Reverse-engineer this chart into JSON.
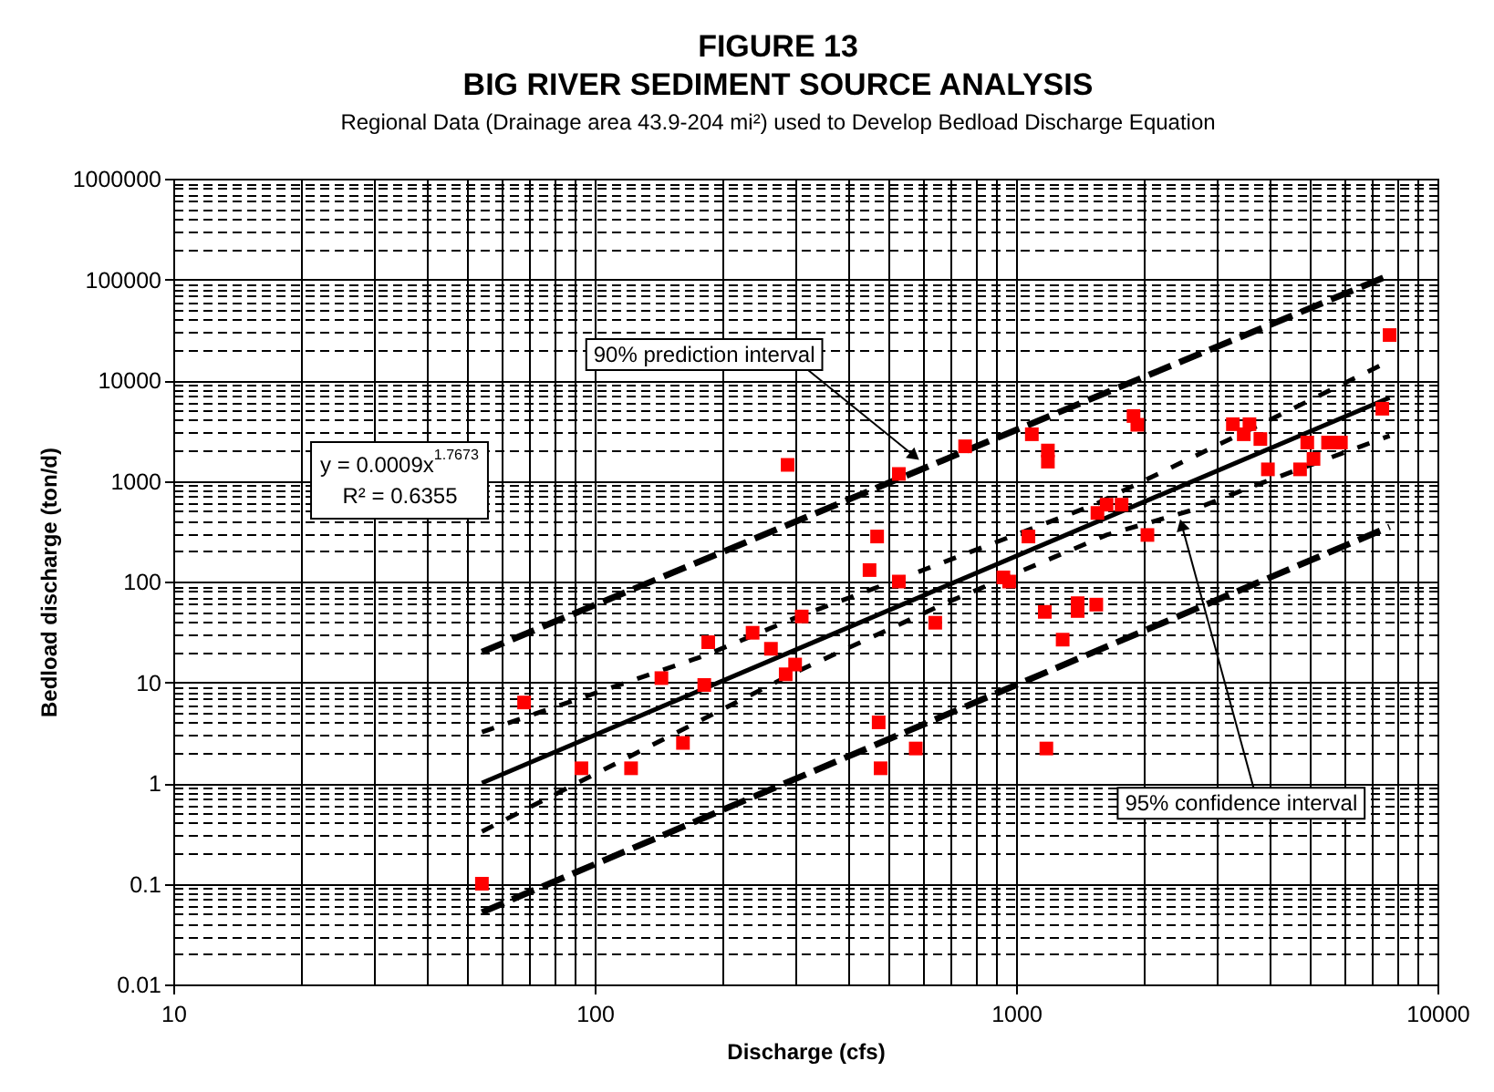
{
  "chart_data": {
    "type": "scatter",
    "title": "FIGURE 13\nBIG RIVER SEDIMENT SOURCE ANALYSIS",
    "subtitle": "Regional Data (Drainage area 43.9-204 mi²) used to Develop Bedload Discharge Equation",
    "xlabel": "Discharge (cfs)",
    "ylabel": "Bedload discharge (ton/d)",
    "log": "xy",
    "grid": true,
    "xlim": [
      10,
      10000
    ],
    "ylim": [
      0.01,
      1000000
    ],
    "xticks": [
      10,
      {
        "value": 20,
        "label": null
      },
      {
        "value": 30,
        "label": null
      },
      {
        "value": 40,
        "label": null
      },
      {
        "value": 50,
        "label": null
      },
      {
        "value": 60,
        "label": null
      },
      {
        "value": 70,
        "label": null
      },
      {
        "value": 80,
        "label": null
      },
      {
        "value": 90,
        "label": null
      },
      100,
      {
        "value": 200,
        "label": null
      },
      {
        "value": 300,
        "label": null
      },
      {
        "value": 400,
        "label": null
      },
      {
        "value": 500,
        "label": null
      },
      {
        "value": 600,
        "label": null
      },
      {
        "value": 700,
        "label": null
      },
      {
        "value": 800,
        "label": null
      },
      {
        "value": 900,
        "label": null
      },
      1000,
      {
        "value": 2000,
        "label": null
      },
      {
        "value": 3000,
        "label": null
      },
      {
        "value": 4000,
        "label": null
      },
      {
        "value": 5000,
        "label": null
      },
      {
        "value": 6000,
        "label": null
      },
      {
        "value": 7000,
        "label": null
      },
      {
        "value": 8000,
        "label": null
      },
      {
        "value": 9000,
        "label": null
      },
      10000
    ],
    "yticks": [
      0.01,
      {
        "value": 0.02,
        "label": null
      },
      {
        "value": 0.03,
        "label": null
      },
      {
        "value": 0.04,
        "label": null
      },
      {
        "value": 0.05,
        "label": null
      },
      {
        "value": 0.06,
        "label": null
      },
      {
        "value": 0.07,
        "label": null
      },
      {
        "value": 0.08,
        "label": null
      },
      {
        "value": 0.09,
        "label": null
      },
      0.1,
      {
        "value": 0.2,
        "label": null
      },
      {
        "value": 0.3,
        "label": null
      },
      {
        "value": 0.4,
        "label": null
      },
      {
        "value": 0.5,
        "label": null
      },
      {
        "value": 0.6,
        "label": null
      },
      {
        "value": 0.7,
        "label": null
      },
      {
        "value": 0.8,
        "label": null
      },
      {
        "value": 0.9,
        "label": null
      },
      1,
      {
        "value": 2,
        "label": null
      },
      {
        "value": 3,
        "label": null
      },
      {
        "value": 4,
        "label": null
      },
      {
        "value": 5,
        "label": null
      },
      {
        "value": 6,
        "label": null
      },
      {
        "value": 7,
        "label": null
      },
      {
        "value": 8,
        "label": null
      },
      {
        "value": 9,
        "label": null
      },
      10,
      {
        "value": 20,
        "label": null
      },
      {
        "value": 30,
        "label": null
      },
      {
        "value": 40,
        "label": null
      },
      {
        "value": 50,
        "label": null
      },
      {
        "value": 60,
        "label": null
      },
      {
        "value": 70,
        "label": null
      },
      {
        "value": 80,
        "label": null
      },
      {
        "value": 90,
        "label": null
      },
      100,
      {
        "value": 200,
        "label": null
      },
      {
        "value": 300,
        "label": null
      },
      {
        "value": 400,
        "label": null
      },
      {
        "value": 500,
        "label": null
      },
      {
        "value": 600,
        "label": null
      },
      {
        "value": 700,
        "label": null
      },
      {
        "value": 800,
        "label": null
      },
      {
        "value": 900,
        "label": null
      },
      1000,
      {
        "value": 2000,
        "label": null
      },
      {
        "value": 3000,
        "label": null
      },
      {
        "value": 4000,
        "label": null
      },
      {
        "value": 5000,
        "label": null
      },
      {
        "value": 6000,
        "label": null
      },
      {
        "value": 7000,
        "label": null
      },
      {
        "value": 8000,
        "label": null
      },
      {
        "value": 9000,
        "label": null
      },
      10000,
      {
        "value": 20000,
        "label": null
      },
      {
        "value": 30000,
        "label": null
      },
      {
        "value": 40000,
        "label": null
      },
      {
        "value": 50000,
        "label": null
      },
      {
        "value": 60000,
        "label": null
      },
      {
        "value": 70000,
        "label": null
      },
      {
        "value": 80000,
        "label": null
      },
      {
        "value": 90000,
        "label": null
      },
      100000,
      {
        "value": 200000,
        "label": null
      },
      {
        "value": 300000,
        "label": null
      },
      {
        "value": 400000,
        "label": null
      },
      {
        "value": 500000,
        "label": null
      },
      {
        "value": 600000,
        "label": null
      },
      {
        "value": 700000,
        "label": null
      },
      {
        "value": 800000,
        "label": null
      },
      {
        "value": 900000,
        "label": null
      },
      1000000
    ],
    "series": [
      {
        "color": "#ff0000",
        "marker": "square",
        "x": [
          54,
          68,
          93,
          122,
          144,
          162,
          182,
          186,
          237,
          262,
          284,
          287,
          299,
          310,
          449,
          468,
          472,
          477,
          527,
          527,
          578,
          643,
          757,
          933,
          963,
          1070,
          1090,
          1170,
          1180,
          1190,
          1190,
          1290,
          1400,
          1400,
          1550,
          1560,
          1640,
          1780,
          1900,
          1940,
          2050,
          3270,
          3470,
          3580,
          3800,
          3960,
          4720,
          4910,
          5080,
          5500,
          5900,
          7400,
          7700
        ],
        "values": [
          0.1,
          6.3,
          1.4,
          1.4,
          11,
          2.5,
          9.4,
          25,
          31,
          21.5,
          12,
          1440,
          15,
          45,
          130,
          280,
          4,
          1.4,
          100,
          1170,
          2.2,
          39,
          2200,
          110,
          100,
          280,
          2900,
          50,
          2.2,
          2000,
          1550,
          26.5,
          61,
          51,
          59,
          480,
          580,
          580,
          4400,
          3600,
          290,
          3650,
          2900,
          3650,
          2600,
          1300,
          1300,
          2400,
          1650,
          2400,
          2400,
          5200,
          28000
        ]
      },
      {
        "type": "line",
        "color": "#000000",
        "line_style": "solid",
        "x": [
          54,
          7700
        ],
        "values": [
          1.0,
          6700
        ]
      },
      {
        "type": "line",
        "color": "#000000",
        "line_style": "dashed",
        "x": [
          54,
          1000,
          7700
        ],
        "values": [
          20,
          3200,
          110000
        ]
      },
      {
        "type": "line",
        "color": "#000000",
        "line_style": "dashed",
        "x": [
          54,
          1000,
          7700
        ],
        "values": [
          0.052,
          9.4,
          350
        ]
      },
      {
        "type": "line",
        "color": "#000000",
        "line_style": "dashed",
        "x": [
          54,
          183,
          301,
          566,
          1535,
          4450,
          7700
        ],
        "values": [
          3.2,
          18.5,
          44,
          118,
          580,
          5000,
          15500
        ]
      },
      {
        "type": "line",
        "color": "#000000",
        "line_style": "dashed",
        "x": [
          54,
          301,
          692,
          1640,
          2610,
          3640,
          7700
        ],
        "values": [
          0.33,
          12.7,
          63,
          290,
          510,
          880,
          2800
        ]
      }
    ],
    "annotations": [
      {
        "text": "90% prediction interval",
        "x": 590,
        "y": 1600
      },
      {
        "text": "95% confidence interval",
        "x": 2450,
        "y": 420
      },
      "y = 0.0009x$^{1.7673}$",
      "R² = 0.6355"
    ]
  }
}
